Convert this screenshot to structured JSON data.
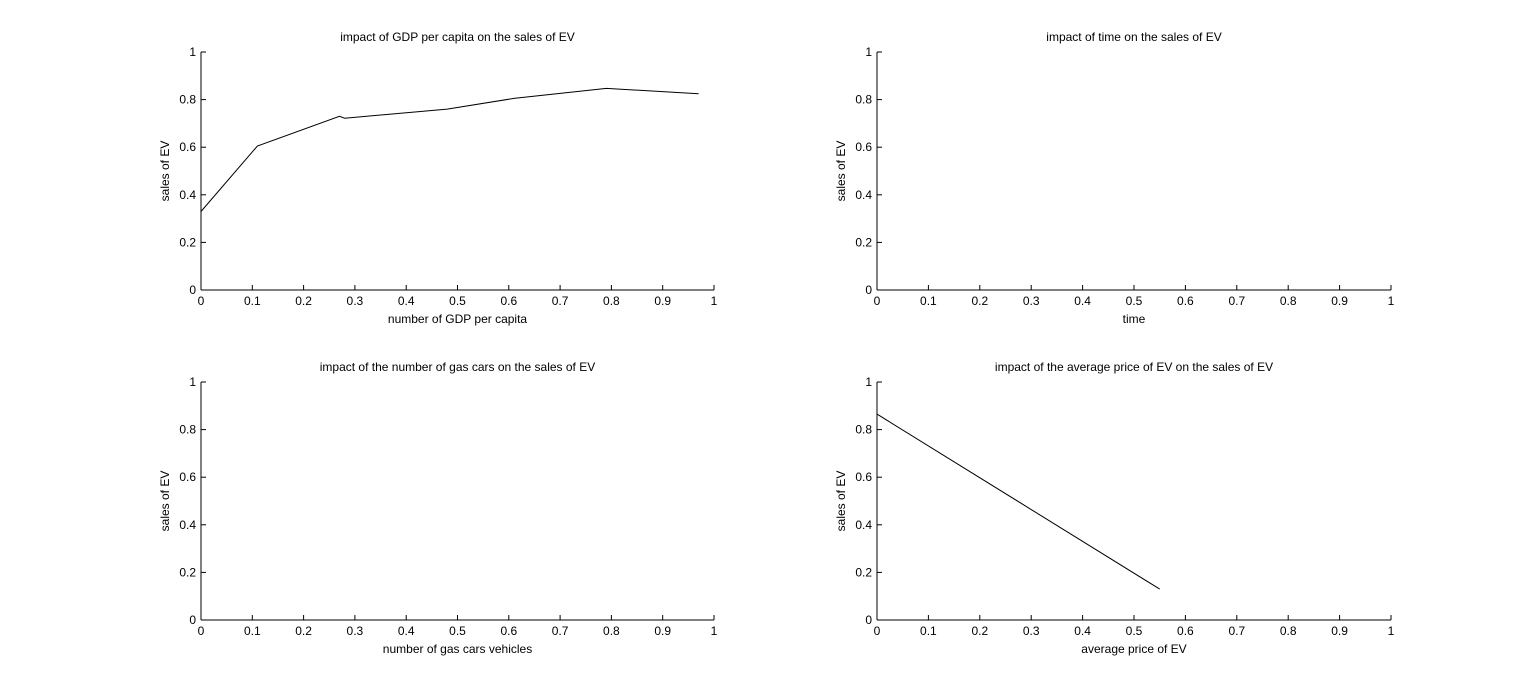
{
  "chart_data": [
    {
      "type": "line",
      "title": "impact of GDP per capita on the sales of EV",
      "xlabel": "number of GDP per capita",
      "ylabel": "sales of EV",
      "xlim": [
        0,
        1
      ],
      "ylim": [
        0,
        1
      ],
      "xticks": [
        "0",
        "0.1",
        "0.2",
        "0.3",
        "0.4",
        "0.5",
        "0.6",
        "0.7",
        "0.8",
        "0.9",
        "1"
      ],
      "yticks": [
        "0",
        "0.2",
        "0.4",
        "0.6",
        "0.8",
        "1"
      ],
      "grid": false,
      "series": [
        {
          "x": [
            0,
            0.11,
            0.27,
            0.28,
            0.48,
            0.61,
            0.79,
            0.97
          ],
          "y": [
            0.33,
            0.605,
            0.73,
            0.722,
            0.76,
            0.805,
            0.847,
            0.825
          ]
        }
      ]
    },
    {
      "type": "line",
      "title": "impact of time on the sales of EV",
      "xlabel": "time",
      "ylabel": "sales of EV",
      "xlim": [
        0,
        1
      ],
      "ylim": [
        0,
        1
      ],
      "xticks": [
        "0",
        "0.1",
        "0.2",
        "0.3",
        "0.4",
        "0.5",
        "0.6",
        "0.7",
        "0.8",
        "0.9",
        "1"
      ],
      "yticks": [
        "0",
        "0.2",
        "0.4",
        "0.6",
        "0.8",
        "1"
      ],
      "grid": false,
      "series": []
    },
    {
      "type": "line",
      "title": "impact of the number of gas cars on the sales of EV",
      "xlabel": "number of gas cars vehicles",
      "ylabel": "sales of EV",
      "xlim": [
        0,
        1
      ],
      "ylim": [
        0,
        1
      ],
      "xticks": [
        "0",
        "0.1",
        "0.2",
        "0.3",
        "0.4",
        "0.5",
        "0.6",
        "0.7",
        "0.8",
        "0.9",
        "1"
      ],
      "yticks": [
        "0",
        "0.2",
        "0.4",
        "0.6",
        "0.8",
        "1"
      ],
      "grid": false,
      "series": []
    },
    {
      "type": "line",
      "title": "impact of the average price of EV on the sales of EV",
      "xlabel": "average price of EV",
      "ylabel": "sales of EV",
      "xlim": [
        0,
        1
      ],
      "ylim": [
        0,
        1
      ],
      "xticks": [
        "0",
        "0.1",
        "0.2",
        "0.3",
        "0.4",
        "0.5",
        "0.6",
        "0.7",
        "0.8",
        "0.9",
        "1"
      ],
      "yticks": [
        "0",
        "0.2",
        "0.4",
        "0.6",
        "0.8",
        "1"
      ],
      "grid": false,
      "series": [
        {
          "x": [
            0,
            0.55
          ],
          "y": [
            0.865,
            0.13
          ]
        }
      ]
    }
  ]
}
